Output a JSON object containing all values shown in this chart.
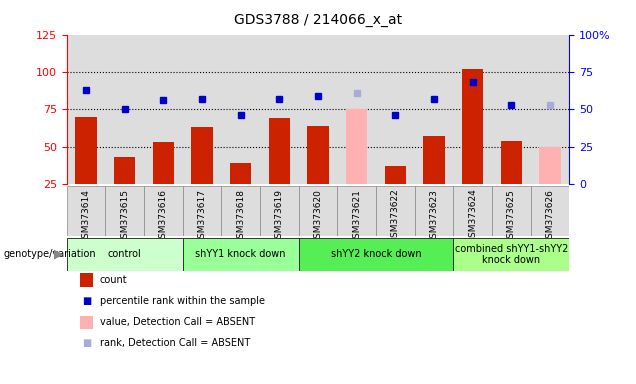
{
  "title": "GDS3788 / 214066_x_at",
  "samples": [
    "GSM373614",
    "GSM373615",
    "GSM373616",
    "GSM373617",
    "GSM373618",
    "GSM373619",
    "GSM373620",
    "GSM373621",
    "GSM373622",
    "GSM373623",
    "GSM373624",
    "GSM373625",
    "GSM373626"
  ],
  "bar_values": [
    70,
    43,
    53,
    63,
    39,
    69,
    64,
    75,
    37,
    57,
    102,
    54,
    50
  ],
  "bar_absent": [
    false,
    false,
    false,
    false,
    false,
    false,
    false,
    true,
    false,
    false,
    false,
    false,
    true
  ],
  "rank_values": [
    88,
    75,
    81,
    82,
    71,
    82,
    84,
    86,
    71,
    82,
    93,
    78,
    78
  ],
  "rank_absent": [
    false,
    false,
    false,
    false,
    false,
    false,
    false,
    true,
    false,
    false,
    false,
    false,
    true
  ],
  "bar_color": "#cc2200",
  "bar_absent_color": "#ffb0b0",
  "rank_color": "#0000cc",
  "rank_absent_color": "#aaaadd",
  "left_ylim": [
    25,
    125
  ],
  "left_yticks": [
    25,
    50,
    75,
    100,
    125
  ],
  "right_ylim": [
    0,
    100
  ],
  "right_yticks": [
    0,
    25,
    50,
    75,
    100
  ],
  "right_yticklabels": [
    "0",
    "25",
    "50",
    "75",
    "100%"
  ],
  "hlines": [
    50,
    75,
    100
  ],
  "groups": [
    {
      "label": "control",
      "start": 0,
      "end": 2,
      "color": "#ccffcc"
    },
    {
      "label": "shYY1 knock down",
      "start": 3,
      "end": 5,
      "color": "#99ff99"
    },
    {
      "label": "shYY2 knock down",
      "start": 6,
      "end": 9,
      "color": "#55ee55"
    },
    {
      "label": "combined shYY1-shYY2\nknock down",
      "start": 10,
      "end": 12,
      "color": "#aaff88"
    }
  ],
  "background_color": "#ffffff",
  "plot_bg_color": "#cccccc",
  "sample_bg_color": "#dddddd",
  "bar_width": 0.55,
  "rank_marker_size": 5
}
